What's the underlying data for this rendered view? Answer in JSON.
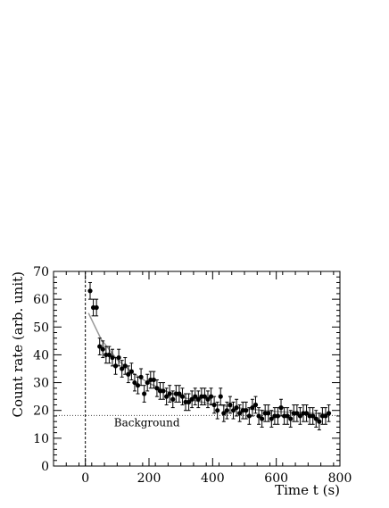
{
  "chart_data": {
    "type": "scatter",
    "title": "",
    "xlabel": "Time  t (s)",
    "ylabel": "Count rate (arb. unit)",
    "xlim": [
      -100,
      800
    ],
    "ylim": [
      0,
      70
    ],
    "x_ticks": [
      0,
      200,
      400,
      600,
      800
    ],
    "y_ticks": [
      0,
      10,
      20,
      30,
      40,
      50,
      60,
      70
    ],
    "grid": false,
    "legend": "none",
    "annotation": "Background",
    "background_level": 18.2,
    "vertical_marker_x": 0,
    "error_half_width": 3,
    "fit": {
      "form": "exponential decay + background",
      "x": [
        10,
        50,
        100,
        150,
        200,
        250,
        300,
        350,
        400,
        500,
        600,
        700,
        770
      ],
      "y": [
        55.0,
        45.5,
        38.3,
        33.4,
        29.8,
        27.1,
        24.9,
        23.4,
        22.2,
        20.6,
        19.6,
        19.0,
        18.7
      ]
    },
    "series": [
      {
        "x": [
          15,
          25,
          35,
          45,
          55,
          65,
          75,
          85,
          95,
          105,
          115,
          125,
          135,
          145,
          155,
          165,
          175,
          185,
          195,
          205,
          215,
          225,
          235,
          245,
          255,
          265,
          275,
          285,
          295,
          305,
          315,
          325,
          335,
          345,
          355,
          365,
          375,
          385,
          395,
          405,
          415,
          425,
          435,
          445,
          455,
          465,
          475,
          485,
          495,
          505,
          515,
          525,
          535,
          545,
          555,
          565,
          575,
          585,
          595,
          605,
          615,
          625,
          635,
          645,
          655,
          665,
          675,
          685,
          695,
          705,
          715,
          725,
          735,
          745,
          755,
          765
        ],
        "y": [
          63,
          57,
          57,
          43,
          42,
          40,
          40,
          39,
          36,
          39,
          35,
          36,
          33,
          34,
          30,
          29,
          32,
          26,
          30,
          31,
          31,
          28,
          27,
          27,
          25,
          26,
          24,
          26,
          26,
          25,
          23,
          23,
          24,
          25,
          24,
          25,
          25,
          24,
          25,
          22,
          20,
          25,
          19,
          20,
          22,
          20,
          21,
          19,
          20,
          20,
          18,
          21,
          22,
          18,
          17,
          19,
          19,
          17,
          18,
          18,
          21,
          18,
          18,
          17,
          19,
          19,
          18,
          19,
          19,
          18,
          18,
          17,
          16,
          18,
          18,
          19
        ]
      }
    ]
  }
}
